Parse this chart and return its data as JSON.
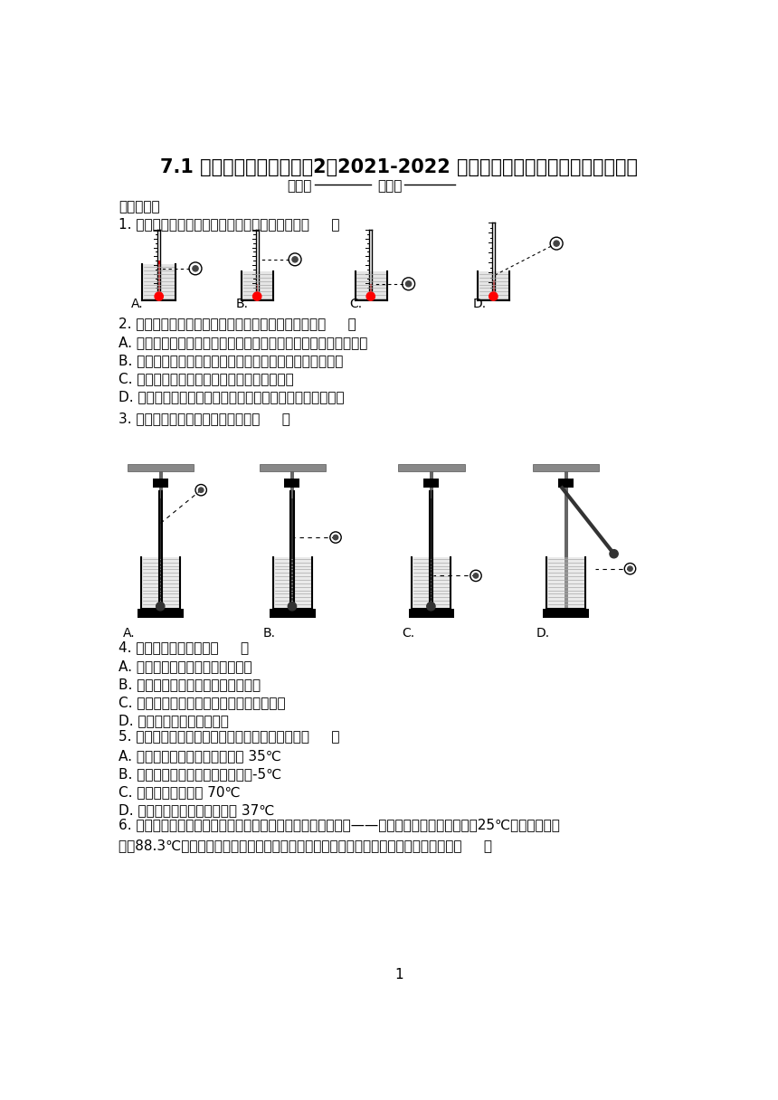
{
  "title": "7.1 温度温度计拔高训练（2）2021-2022 学年京改版物理八年级全一册第七章",
  "name_line1": "姓名：",
  "name_line2": "班级：",
  "section1": "一、单选题",
  "q1": "1. 以下关于用温度计测量水的温度方法正确的是（     ）",
  "q2": "2. 下列关于测量工具的使用方法，下列说法错误的是（     ）",
  "q2A": "A. 调节天平平衡时，若指针向分度盘右侧偏，应将平衡螺母向左调",
  "q2B": "B. 用温度计测量液体温度时，玻璃泡要全部没入待测液体中",
  "q2C": "C. 使用刻度尺测量长度时，必须从零刻线量起",
  "q2D": "D. 使用量筒测量水的体积，读数时视线应与凹液面底部相平",
  "q3": "3. 测量液体的温度，图中正确的是（     ）",
  "q4": "4. 下列说法中正确的是（     ）",
  "q4A": "A. 不可以用体温计测量沸水的温度",
  "q4B": "B. 测量中误差的大小与测量工具无关",
  "q4C": "C. 测量时，选择分度值越小的测量工具越好",
  "q4D": "D. 多次实验，可以避免误差",
  "q5": "5. 以下是小明估计的常见温度值，其中合理的是（     ）",
  "q5A": "A. 人体感觉舒适的环境温度约为 35℃",
  "q5B": "B. 冰箱保鲜室中矿泉水的温度约为-5℃",
  "q5C": "C. 洗澡时淋浴水温为 70℃",
  "q5D": "D. 健康成年人的腋下体温约为 37℃",
  "q6_line1": "6. 我国在南极乔治岛上，建立了我国第一个南极科学考察基地——长城站。南极平均气温为－25℃，最低气温可",
  "q6_line2": "达－88.3℃。下表为在标准大气压下各物质的凝固点和沸点，所以在南极测气温应使用（     ）",
  "page_num": "1",
  "bg_color": "#ffffff"
}
